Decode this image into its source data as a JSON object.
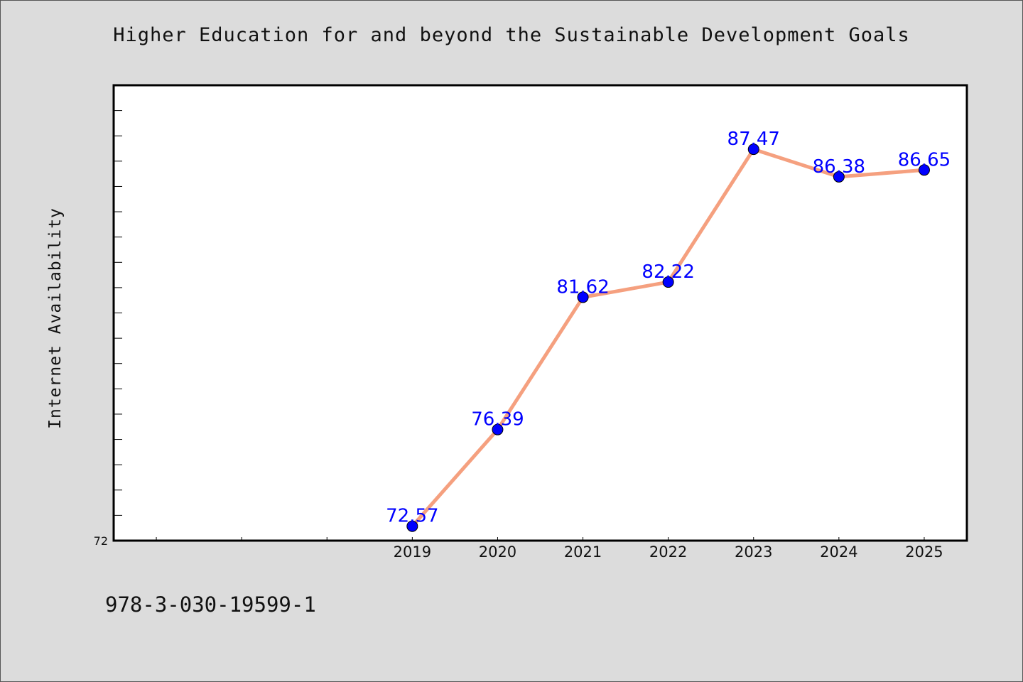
{
  "chart_data": {
    "type": "line",
    "title": "Higher Education for and beyond the Sustainable Development Goals",
    "xlabel": "",
    "ylabel": "Internet Availability",
    "categories": [
      "2019",
      "2020",
      "2021",
      "2022",
      "2023",
      "2024",
      "2025"
    ],
    "values": [
      72.57,
      76.39,
      81.62,
      82.22,
      87.47,
      86.38,
      86.65
    ],
    "data_labels": [
      "72.57",
      "76.39",
      "81.62",
      "82.22",
      "87.47",
      "86.38",
      "86.65"
    ],
    "y_tick_labels": [
      "72"
    ],
    "ylim": [
      72,
      90
    ],
    "xlim": [
      2015.5,
      2025.5
    ],
    "grid": false,
    "legend": "none",
    "colors": {
      "line": "#f5a07f",
      "marker": "#0000ff",
      "label": "#0000ff"
    }
  },
  "footer": {
    "isbn": "978-3-030-19599-1"
  }
}
